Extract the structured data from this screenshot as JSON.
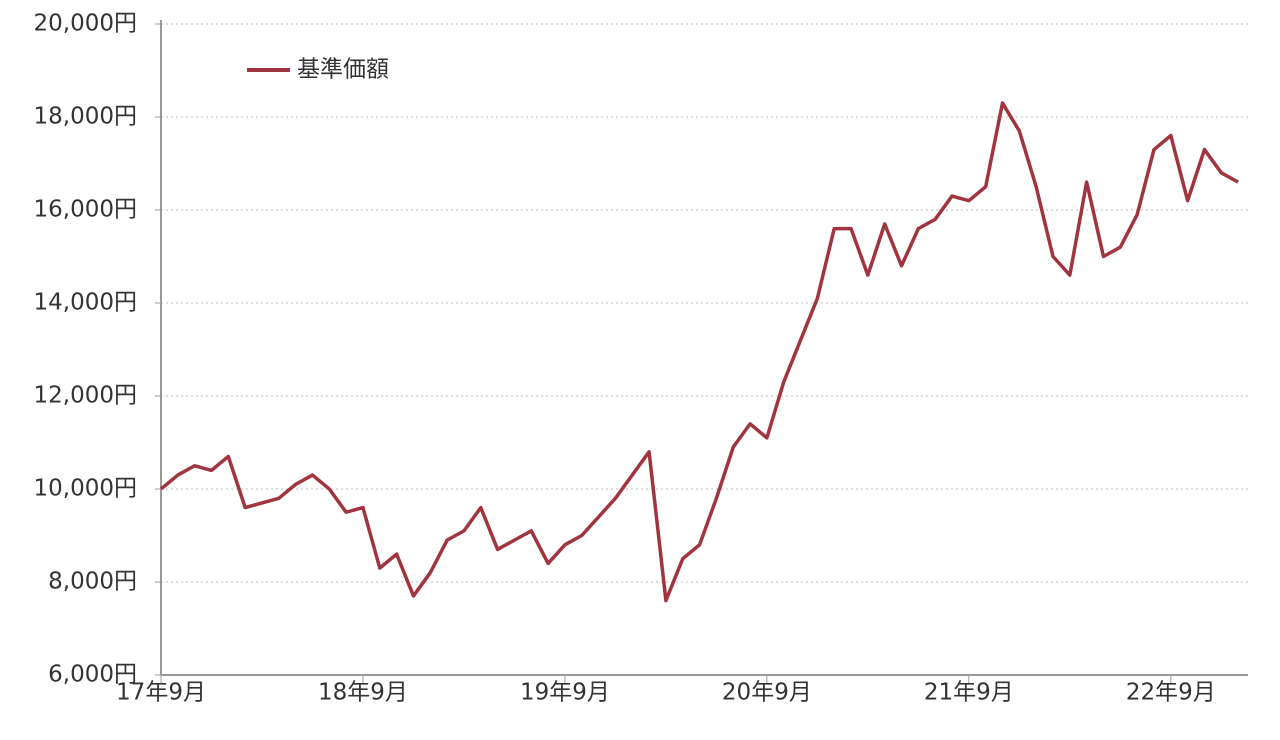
{
  "chart_data": {
    "type": "line",
    "categories": [
      "17年9月",
      null,
      null,
      null,
      null,
      null,
      null,
      null,
      null,
      null,
      null,
      null,
      "18年9月",
      null,
      null,
      null,
      null,
      null,
      null,
      null,
      null,
      null,
      null,
      null,
      "19年9月",
      null,
      null,
      null,
      null,
      null,
      null,
      null,
      null,
      null,
      null,
      null,
      "20年9月",
      null,
      null,
      null,
      null,
      null,
      null,
      null,
      null,
      null,
      null,
      null,
      "21年9月",
      null,
      null,
      null,
      null,
      null,
      null,
      null,
      null,
      null,
      null,
      null,
      "22年9月",
      null,
      null,
      null,
      null
    ],
    "series": [
      {
        "name": "基準価額",
        "color": "#a0343f",
        "values": [
          10000,
          10300,
          10500,
          10400,
          10700,
          9600,
          9700,
          9800,
          10100,
          10300,
          10000,
          9500,
          9600,
          8300,
          8600,
          7700,
          8200,
          8900,
          9100,
          9600,
          8700,
          8900,
          9100,
          8400,
          8800,
          9000,
          9400,
          9800,
          10300,
          10800,
          7600,
          8500,
          8800,
          9800,
          10900,
          11400,
          11100,
          12300,
          13200,
          14100,
          15600,
          15600,
          14600,
          15700,
          14800,
          15600,
          15800,
          16300,
          16200,
          16500,
          18300,
          17700,
          16500,
          15000,
          14600,
          16600,
          15000,
          15200,
          15900,
          17300,
          17600,
          16200,
          17300,
          16800,
          16600
        ]
      }
    ],
    "ylim": [
      6000,
      20000
    ],
    "yticks": [
      {
        "value": 6000,
        "label": "6,000円"
      },
      {
        "value": 8000,
        "label": "8,000円"
      },
      {
        "value": 10000,
        "label": "10,000円"
      },
      {
        "value": 12000,
        "label": "12,000円"
      },
      {
        "value": 14000,
        "label": "14,000円"
      },
      {
        "value": 16000,
        "label": "16,000円"
      },
      {
        "value": 18000,
        "label": "18,000円"
      },
      {
        "value": 20000,
        "label": "20,000円"
      }
    ],
    "grid": true,
    "legend": "upper left"
  }
}
